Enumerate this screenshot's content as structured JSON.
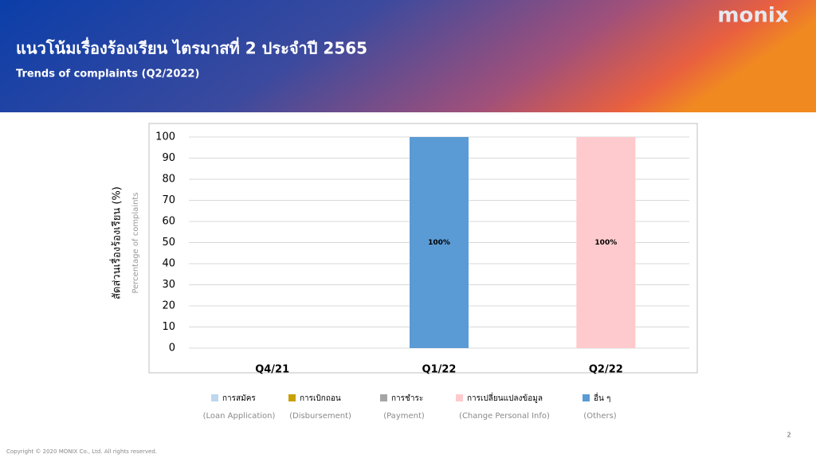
{
  "header": {
    "title": "แนวโน้มเรื่องร้องเรียน ไตรมาสที่ 2 ประจำปี 2565",
    "subtitle": "Trends of complaints (Q2/2022)",
    "logo": "monix"
  },
  "chart_data": {
    "type": "bar",
    "stacked": true,
    "y_label": "สัดส่วนเรื่องร้องเรียน (%)",
    "y_label_en": "Percentage of complaints",
    "categories": [
      "Q4/21",
      "Q1/22",
      "Q2/22"
    ],
    "series": [
      {
        "name": "การสมัคร",
        "name_en": "(Loan Application)",
        "color": "#bdd7ee",
        "values": [
          null,
          null,
          null
        ]
      },
      {
        "name": "การเบิกถอน",
        "name_en": "(Disbursement)",
        "color": "#c9a000",
        "values": [
          null,
          null,
          null
        ]
      },
      {
        "name": "การชำระ",
        "name_en": "(Payment)",
        "color": "#a5a5a5",
        "values": [
          null,
          null,
          null
        ]
      },
      {
        "name": "การเปลี่ยนแปลงข้อมูล",
        "name_en": "(Change Personal Info)",
        "color": "#ffcacd",
        "values": [
          null,
          null,
          100
        ],
        "value_labels": [
          null,
          null,
          "100%"
        ]
      },
      {
        "name": "อื่น ๆ",
        "name_en": "(Others)",
        "color": "#5b9bd5",
        "values": [
          null,
          100,
          null
        ],
        "value_labels": [
          null,
          "100%",
          null
        ]
      }
    ],
    "ylim": [
      0,
      100
    ],
    "yticks": [
      0,
      10,
      20,
      30,
      40,
      50,
      60,
      70,
      80,
      90,
      100
    ],
    "grid": true
  },
  "footer": {
    "copyright": "Copyright © 2020 MONIX Co., Ltd. All rights reserved.",
    "page_number": "2"
  }
}
